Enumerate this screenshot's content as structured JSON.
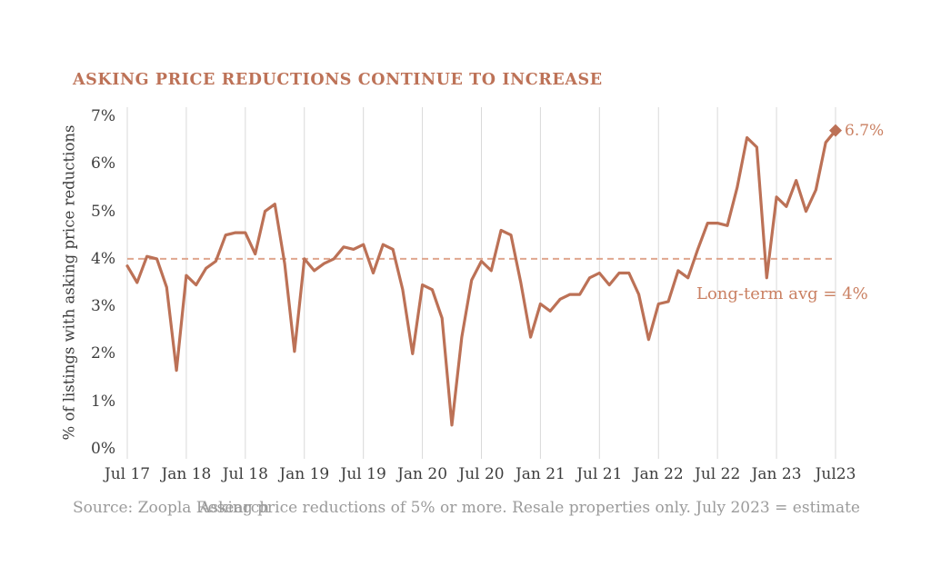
{
  "title": "ASKING PRICE REDUCTIONS CONTINUE TO INCREASE",
  "footer": {
    "source": "Source: Zoopla Research",
    "note": "Asking price reductions of 5% or more. Resale properties only. July 2023 = estimate"
  },
  "chart_data": {
    "type": "line",
    "title": "ASKING PRICE REDUCTIONS CONTINUE TO INCREASE",
    "ylabel": "% of listings with asking price reductions",
    "ylim": [
      0,
      7
    ],
    "y_ticks": [
      7,
      6,
      5,
      4,
      3,
      2,
      1,
      0
    ],
    "y_tick_suffix": "%",
    "grid": "vertical-only",
    "legend": "none",
    "x_tick_labels": [
      "Jul 17",
      "Jan 18",
      "Jul 18",
      "Jan 19",
      "Jul 19",
      "Jan 20",
      "Jul 20",
      "Jan 21",
      "Jul 21",
      "Jan 22",
      "Jul 22",
      "Jan 23",
      "Jul23"
    ],
    "x_tick_indices": [
      0,
      6,
      12,
      18,
      24,
      30,
      36,
      42,
      48,
      54,
      60,
      66,
      72
    ],
    "x": [
      "2017-07",
      "2017-08",
      "2017-09",
      "2017-10",
      "2017-11",
      "2017-12",
      "2018-01",
      "2018-02",
      "2018-03",
      "2018-04",
      "2018-05",
      "2018-06",
      "2018-07",
      "2018-08",
      "2018-09",
      "2018-10",
      "2018-11",
      "2018-12",
      "2019-01",
      "2019-02",
      "2019-03",
      "2019-04",
      "2019-05",
      "2019-06",
      "2019-07",
      "2019-08",
      "2019-09",
      "2019-10",
      "2019-11",
      "2019-12",
      "2020-01",
      "2020-02",
      "2020-03",
      "2020-04",
      "2020-05",
      "2020-06",
      "2020-07",
      "2020-08",
      "2020-09",
      "2020-10",
      "2020-11",
      "2020-12",
      "2021-01",
      "2021-02",
      "2021-03",
      "2021-04",
      "2021-05",
      "2021-06",
      "2021-07",
      "2021-08",
      "2021-09",
      "2021-10",
      "2021-11",
      "2021-12",
      "2022-01",
      "2022-02",
      "2022-03",
      "2022-04",
      "2022-05",
      "2022-06",
      "2022-07",
      "2022-08",
      "2022-09",
      "2022-10",
      "2022-11",
      "2022-12",
      "2023-01",
      "2023-02",
      "2023-03",
      "2023-04",
      "2023-05",
      "2023-06",
      "2023-07"
    ],
    "values": [
      3.85,
      3.5,
      4.05,
      4.0,
      3.4,
      1.65,
      3.65,
      3.45,
      3.8,
      3.95,
      4.5,
      4.55,
      4.55,
      4.1,
      5.0,
      5.15,
      3.9,
      2.05,
      4.0,
      3.75,
      3.9,
      4.0,
      4.25,
      4.2,
      4.3,
      3.7,
      4.3,
      4.2,
      3.35,
      2.0,
      3.45,
      3.35,
      2.75,
      0.5,
      2.35,
      3.55,
      3.95,
      3.75,
      4.6,
      4.5,
      3.5,
      2.35,
      3.05,
      2.9,
      3.15,
      3.25,
      3.25,
      3.6,
      3.7,
      3.45,
      3.7,
      3.7,
      3.25,
      2.3,
      3.05,
      3.1,
      3.75,
      3.6,
      4.2,
      4.75,
      4.75,
      4.7,
      5.5,
      6.55,
      6.35,
      3.6,
      5.3,
      5.1,
      5.65,
      5.0,
      5.45,
      6.45,
      6.7
    ],
    "avg_line": {
      "value": 4.0,
      "label": "Long-term avg = 4%"
    },
    "end_marker": {
      "value": 6.7,
      "label": "6.7%"
    },
    "colors": {
      "line": "#bc7156",
      "dashed_avg": "#dfa68e",
      "title": "#bd7257",
      "annotation": "#ca8062",
      "gridline": "#d9d9d9",
      "tick_text": "#3d3d3d",
      "footer_text": "#9b9b9b",
      "background": "#ffffff"
    }
  }
}
